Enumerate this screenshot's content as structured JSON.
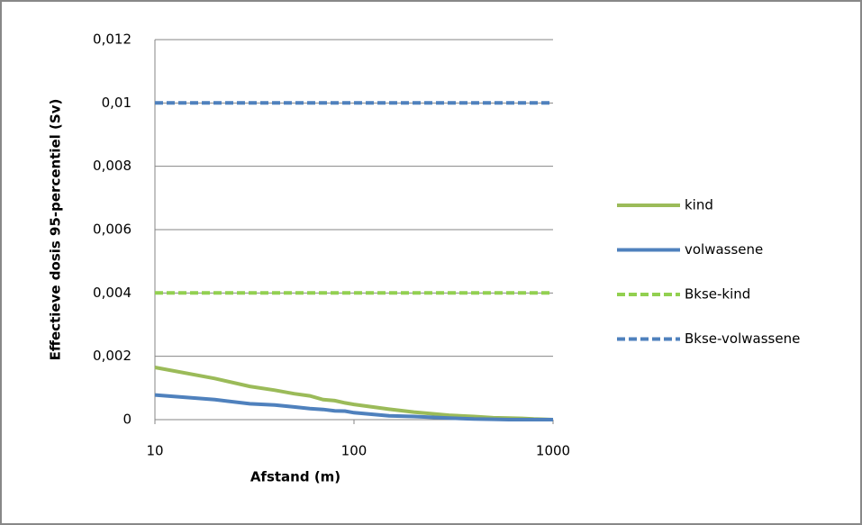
{
  "chart_data": {
    "type": "line",
    "y_label": "Effectieve dosis 95-percentiel (Sv)",
    "x_label": "Afstand (m)",
    "x": [
      10,
      20,
      30,
      40,
      50,
      60,
      70,
      80,
      90,
      100,
      150,
      200,
      300,
      400,
      500,
      600,
      700,
      800,
      900,
      1000
    ],
    "series": [
      {
        "name": "kind",
        "color": "#9bbb59",
        "dashed": false,
        "values": [
          0.00165,
          0.0013,
          0.00105,
          0.00093,
          0.00082,
          0.00075,
          0.00063,
          0.0006,
          0.00053,
          0.00048,
          0.00033,
          0.00024,
          0.00014,
          0.0001,
          6e-05,
          5e-05,
          4e-05,
          2e-05,
          1e-05,
          0
        ]
      },
      {
        "name": "volwassene",
        "color": "#4f81bd",
        "dashed": false,
        "values": [
          0.00078,
          0.00063,
          0.0005,
          0.00046,
          0.0004,
          0.00035,
          0.00032,
          0.00028,
          0.00027,
          0.00022,
          0.00012,
          0.0001,
          5e-05,
          2e-05,
          1e-05,
          0,
          0,
          0,
          0,
          0
        ]
      },
      {
        "name": "Bkse-kind",
        "color": "#92d050",
        "dashed": true,
        "values": [
          0.004,
          0.004,
          0.004,
          0.004,
          0.004,
          0.004,
          0.004,
          0.004,
          0.004,
          0.004,
          0.004,
          0.004,
          0.004,
          0.004,
          0.004,
          0.004,
          0.004,
          0.004,
          0.004,
          0.004
        ]
      },
      {
        "name": "Bkse-volwassene",
        "color": "#4f81bd",
        "dashed": true,
        "values": [
          0.01,
          0.01,
          0.01,
          0.01,
          0.01,
          0.01,
          0.01,
          0.01,
          0.01,
          0.01,
          0.01,
          0.01,
          0.01,
          0.01,
          0.01,
          0.01,
          0.01,
          0.01,
          0.01,
          0.01
        ]
      }
    ],
    "xlim": [
      10,
      1000
    ],
    "xticks": [
      10,
      100,
      1000
    ],
    "xscale": "log",
    "ylim": [
      0,
      0.012
    ],
    "yticks": [
      0,
      {
        "value": 0.002,
        "label": "0,002"
      },
      {
        "value": 0.004,
        "label": "0,004"
      },
      {
        "value": 0.006,
        "label": "0,006"
      },
      {
        "value": 0.008,
        "label": "0,008"
      },
      {
        "value": 0.01,
        "label": "0,01"
      },
      {
        "value": 0.012,
        "label": "0,012"
      }
    ],
    "grid": true,
    "legend": "right"
  }
}
